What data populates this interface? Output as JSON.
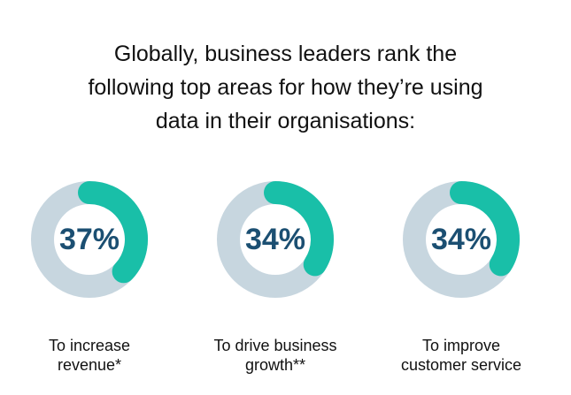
{
  "header": {
    "title_lines": [
      "Globally, business leaders rank the",
      "following top areas for how they’re using",
      "data in their organisations:"
    ]
  },
  "colors": {
    "accent": "#19bfa8",
    "track": "#c7d6df",
    "value_text": "#1b4f72"
  },
  "chart_data": [
    {
      "type": "pie",
      "values": [
        37,
        63
      ],
      "value_label": "37%",
      "category_lines": [
        "To increase",
        "revenue*"
      ]
    },
    {
      "type": "pie",
      "values": [
        34,
        66
      ],
      "value_label": "34%",
      "category_lines": [
        "To drive business",
        "growth**"
      ]
    },
    {
      "type": "pie",
      "values": [
        34,
        66
      ],
      "value_label": "34%",
      "category_lines": [
        "To improve",
        "customer service"
      ]
    }
  ]
}
